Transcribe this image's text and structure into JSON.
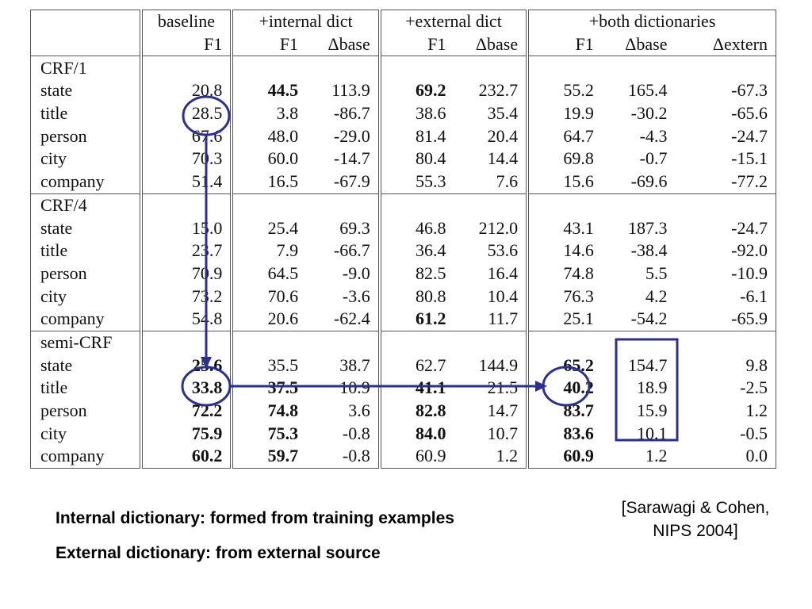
{
  "table": {
    "group_headers": [
      "",
      "baseline",
      "+internal dict",
      "+external dict",
      "+both dictionaries"
    ],
    "column_headers": [
      "",
      "F1",
      "F1",
      "Δbase",
      "F1",
      "Δbase",
      "F1",
      "Δbase",
      "Δextern"
    ],
    "sections": [
      {
        "name": "CRF/1",
        "rows": [
          {
            "label": "state",
            "values": [
              "20.8",
              "44.5",
              "113.9",
              "69.2",
              "232.7",
              "55.2",
              "165.4",
              "-67.3"
            ],
            "bold": [
              false,
              true,
              false,
              true,
              false,
              false,
              false,
              false
            ]
          },
          {
            "label": "title",
            "values": [
              "28.5",
              "3.8",
              "-86.7",
              "38.6",
              "35.4",
              "19.9",
              "-30.2",
              "-65.6"
            ],
            "bold": [
              false,
              false,
              false,
              false,
              false,
              false,
              false,
              false
            ]
          },
          {
            "label": "person",
            "values": [
              "67.6",
              "48.0",
              "-29.0",
              "81.4",
              "20.4",
              "64.7",
              "-4.3",
              "-24.7"
            ],
            "bold": [
              false,
              false,
              false,
              false,
              false,
              false,
              false,
              false
            ]
          },
          {
            "label": "city",
            "values": [
              "70.3",
              "60.0",
              "-14.7",
              "80.4",
              "14.4",
              "69.8",
              "-0.7",
              "-15.1"
            ],
            "bold": [
              false,
              false,
              false,
              false,
              false,
              false,
              false,
              false
            ]
          },
          {
            "label": "company",
            "values": [
              "51.4",
              "16.5",
              "-67.9",
              "55.3",
              "7.6",
              "15.6",
              "-69.6",
              "-77.2"
            ],
            "bold": [
              false,
              false,
              false,
              false,
              false,
              false,
              false,
              false
            ]
          }
        ]
      },
      {
        "name": "CRF/4",
        "rows": [
          {
            "label": "state",
            "values": [
              "15.0",
              "25.4",
              "69.3",
              "46.8",
              "212.0",
              "43.1",
              "187.3",
              "-24.7"
            ],
            "bold": [
              false,
              false,
              false,
              false,
              false,
              false,
              false,
              false
            ]
          },
          {
            "label": "title",
            "values": [
              "23.7",
              "7.9",
              "-66.7",
              "36.4",
              "53.6",
              "14.6",
              "-38.4",
              "-92.0"
            ],
            "bold": [
              false,
              false,
              false,
              false,
              false,
              false,
              false,
              false
            ]
          },
          {
            "label": "person",
            "values": [
              "70.9",
              "64.5",
              "-9.0",
              "82.5",
              "16.4",
              "74.8",
              "5.5",
              "-10.9"
            ],
            "bold": [
              false,
              false,
              false,
              false,
              false,
              false,
              false,
              false
            ]
          },
          {
            "label": "city",
            "values": [
              "73.2",
              "70.6",
              "-3.6",
              "80.8",
              "10.4",
              "76.3",
              "4.2",
              "-6.1"
            ],
            "bold": [
              false,
              false,
              false,
              false,
              false,
              false,
              false,
              false
            ]
          },
          {
            "label": "company",
            "values": [
              "54.8",
              "20.6",
              "-62.4",
              "61.2",
              "11.7",
              "25.1",
              "-54.2",
              "-65.9"
            ],
            "bold": [
              false,
              false,
              false,
              true,
              false,
              false,
              false,
              false
            ]
          }
        ]
      },
      {
        "name": "semi-CRF",
        "rows": [
          {
            "label": "state",
            "values": [
              "25.6",
              "35.5",
              "38.7",
              "62.7",
              "144.9",
              "65.2",
              "154.7",
              "9.8"
            ],
            "bold": [
              true,
              false,
              false,
              false,
              false,
              true,
              false,
              false
            ]
          },
          {
            "label": "title",
            "values": [
              "33.8",
              "37.5",
              "10.9",
              "41.1",
              "21.5",
              "40.2",
              "18.9",
              "-2.5"
            ],
            "bold": [
              true,
              true,
              false,
              true,
              false,
              true,
              false,
              false
            ]
          },
          {
            "label": "person",
            "values": [
              "72.2",
              "74.8",
              "3.6",
              "82.8",
              "14.7",
              "83.7",
              "15.9",
              "1.2"
            ],
            "bold": [
              true,
              true,
              false,
              true,
              false,
              true,
              false,
              false
            ]
          },
          {
            "label": "city",
            "values": [
              "75.9",
              "75.3",
              "-0.8",
              "84.0",
              "10.7",
              "83.6",
              "10.1",
              "-0.5"
            ],
            "bold": [
              true,
              true,
              false,
              true,
              false,
              true,
              false,
              false
            ]
          },
          {
            "label": "company",
            "values": [
              "60.2",
              "59.7",
              "-0.8",
              "60.9",
              "1.2",
              "60.9",
              "1.2",
              "0.0"
            ],
            "bold": [
              true,
              true,
              false,
              false,
              false,
              true,
              false,
              false
            ]
          }
        ]
      }
    ]
  },
  "notes": {
    "internal": "Internal dictionary: formed from training examples",
    "external": "External dictionary: from external source"
  },
  "citation": {
    "line1": "[Sarawagi & Cohen,",
    "line2": "NIPS 2004]"
  },
  "annotation_color": "#2b2f8f"
}
